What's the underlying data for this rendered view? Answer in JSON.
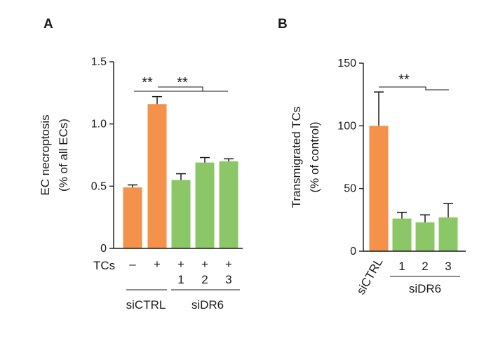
{
  "chart_data": [
    {
      "panel": "A",
      "type": "bar",
      "ylabel_line1": "EC necroptosis",
      "ylabel_line2": "(% of all ECs)",
      "ylim": [
        0,
        1.5
      ],
      "yticks": [
        "0",
        "0.5",
        "1.0",
        "1.5"
      ],
      "ytick_values": [
        0,
        0.5,
        1.0,
        1.5
      ],
      "tcs_row_label": "TCs",
      "tcs_signs": [
        "–",
        "+",
        "+",
        "+",
        "+"
      ],
      "sub_labels": [
        "",
        "",
        "1",
        "2",
        "3"
      ],
      "group_labels": [
        "siCTRL",
        "siDR6"
      ],
      "values": [
        0.49,
        1.16,
        0.55,
        0.69,
        0.7
      ],
      "errors": [
        0.02,
        0.06,
        0.05,
        0.04,
        0.02
      ],
      "colors": [
        "#f4914a",
        "#f4914a",
        "#8cc767",
        "#8cc767",
        "#8cc767"
      ],
      "significance": [
        "**",
        "**"
      ]
    },
    {
      "panel": "B",
      "type": "bar",
      "ylabel_line1": "Transmigrated TCs",
      "ylabel_line2": "(% of control)",
      "ylim": [
        0,
        150
      ],
      "yticks": [
        "0",
        "50",
        "100",
        "150"
      ],
      "ytick_values": [
        0,
        50,
        100,
        150
      ],
      "categories": [
        "siCTRL",
        "1",
        "2",
        "3"
      ],
      "group_labels": [
        "siDR6"
      ],
      "values": [
        100,
        26,
        23,
        27
      ],
      "errors": [
        27,
        5,
        6,
        11
      ],
      "colors": [
        "#f4914a",
        "#8cc767",
        "#8cc767",
        "#8cc767"
      ],
      "significance": [
        "**"
      ]
    }
  ]
}
